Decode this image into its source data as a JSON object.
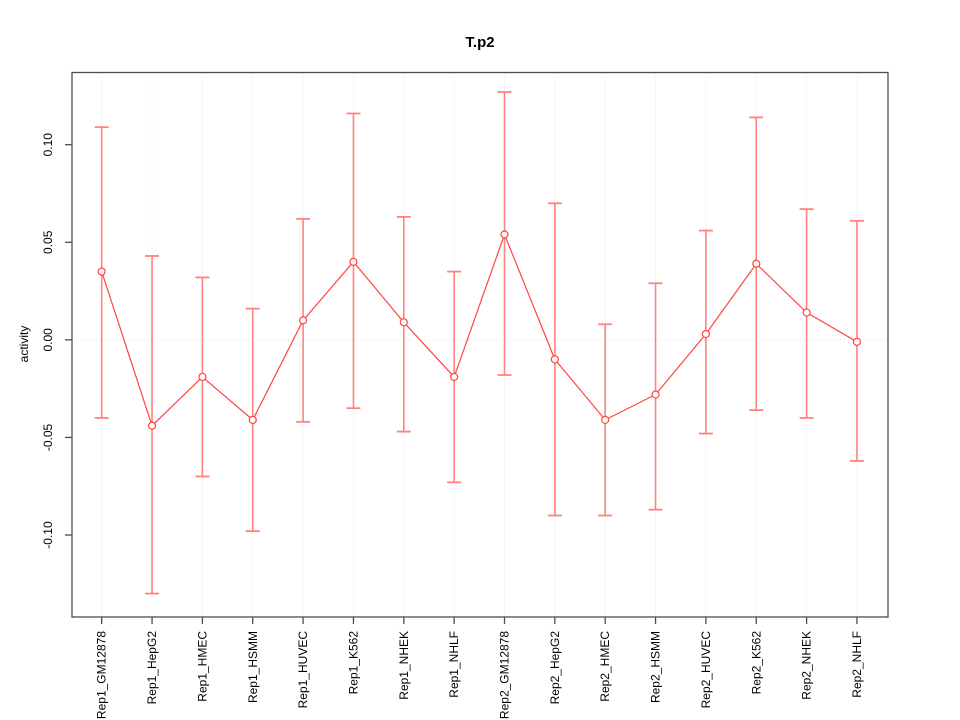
{
  "title": "T.p2",
  "colors": {
    "series_red": "#ff4540",
    "error_bar_red": "#ff837c",
    "grid_gray": "#dcdcdc",
    "axis_gray": "#4d4d4d",
    "text_black": "#000000"
  },
  "chart_data": {
    "type": "line",
    "title": "T.p2",
    "xlabel": "",
    "ylabel": "activity",
    "legend": "none",
    "grid": {
      "vertical_dotted_per_category": true,
      "horizontal_dotted_at_zero": true
    },
    "marker": "open-circle",
    "error_bars": true,
    "categories": [
      "Rep1_GM12878",
      "Rep1_HepG2",
      "Rep1_HMEC",
      "Rep1_HSMM",
      "Rep1_HUVEC",
      "Rep1_K562",
      "Rep1_NHEK",
      "Rep1_NHLF",
      "Rep2_GM12878",
      "Rep2_HepG2",
      "Rep2_HMEC",
      "Rep2_HSMM",
      "Rep2_HUVEC",
      "Rep2_K562",
      "Rep2_NHEK",
      "Rep2_NHLF"
    ],
    "series": [
      {
        "name": "activity",
        "values": [
          0.035,
          -0.044,
          -0.019,
          -0.041,
          0.01,
          0.04,
          0.009,
          -0.019,
          0.054,
          -0.01,
          -0.041,
          -0.028,
          0.003,
          0.039,
          0.014,
          -0.001
        ],
        "lower": [
          -0.04,
          -0.13,
          -0.07,
          -0.098,
          -0.042,
          -0.035,
          -0.047,
          -0.073,
          -0.018,
          -0.09,
          -0.09,
          -0.087,
          -0.048,
          -0.036,
          -0.04,
          -0.062
        ],
        "upper": [
          0.109,
          0.043,
          0.032,
          0.016,
          0.062,
          0.116,
          0.063,
          0.035,
          0.127,
          0.07,
          0.008,
          0.029,
          0.056,
          0.114,
          0.067,
          0.061
        ]
      }
    ],
    "yticks": [
      -0.1,
      -0.05,
      0.0,
      0.05,
      0.1
    ],
    "ytick_labels": [
      "-0.10",
      "-0.05",
      "0.00",
      "0.05",
      "0.10"
    ],
    "ylim": [
      -0.142,
      0.137
    ]
  }
}
